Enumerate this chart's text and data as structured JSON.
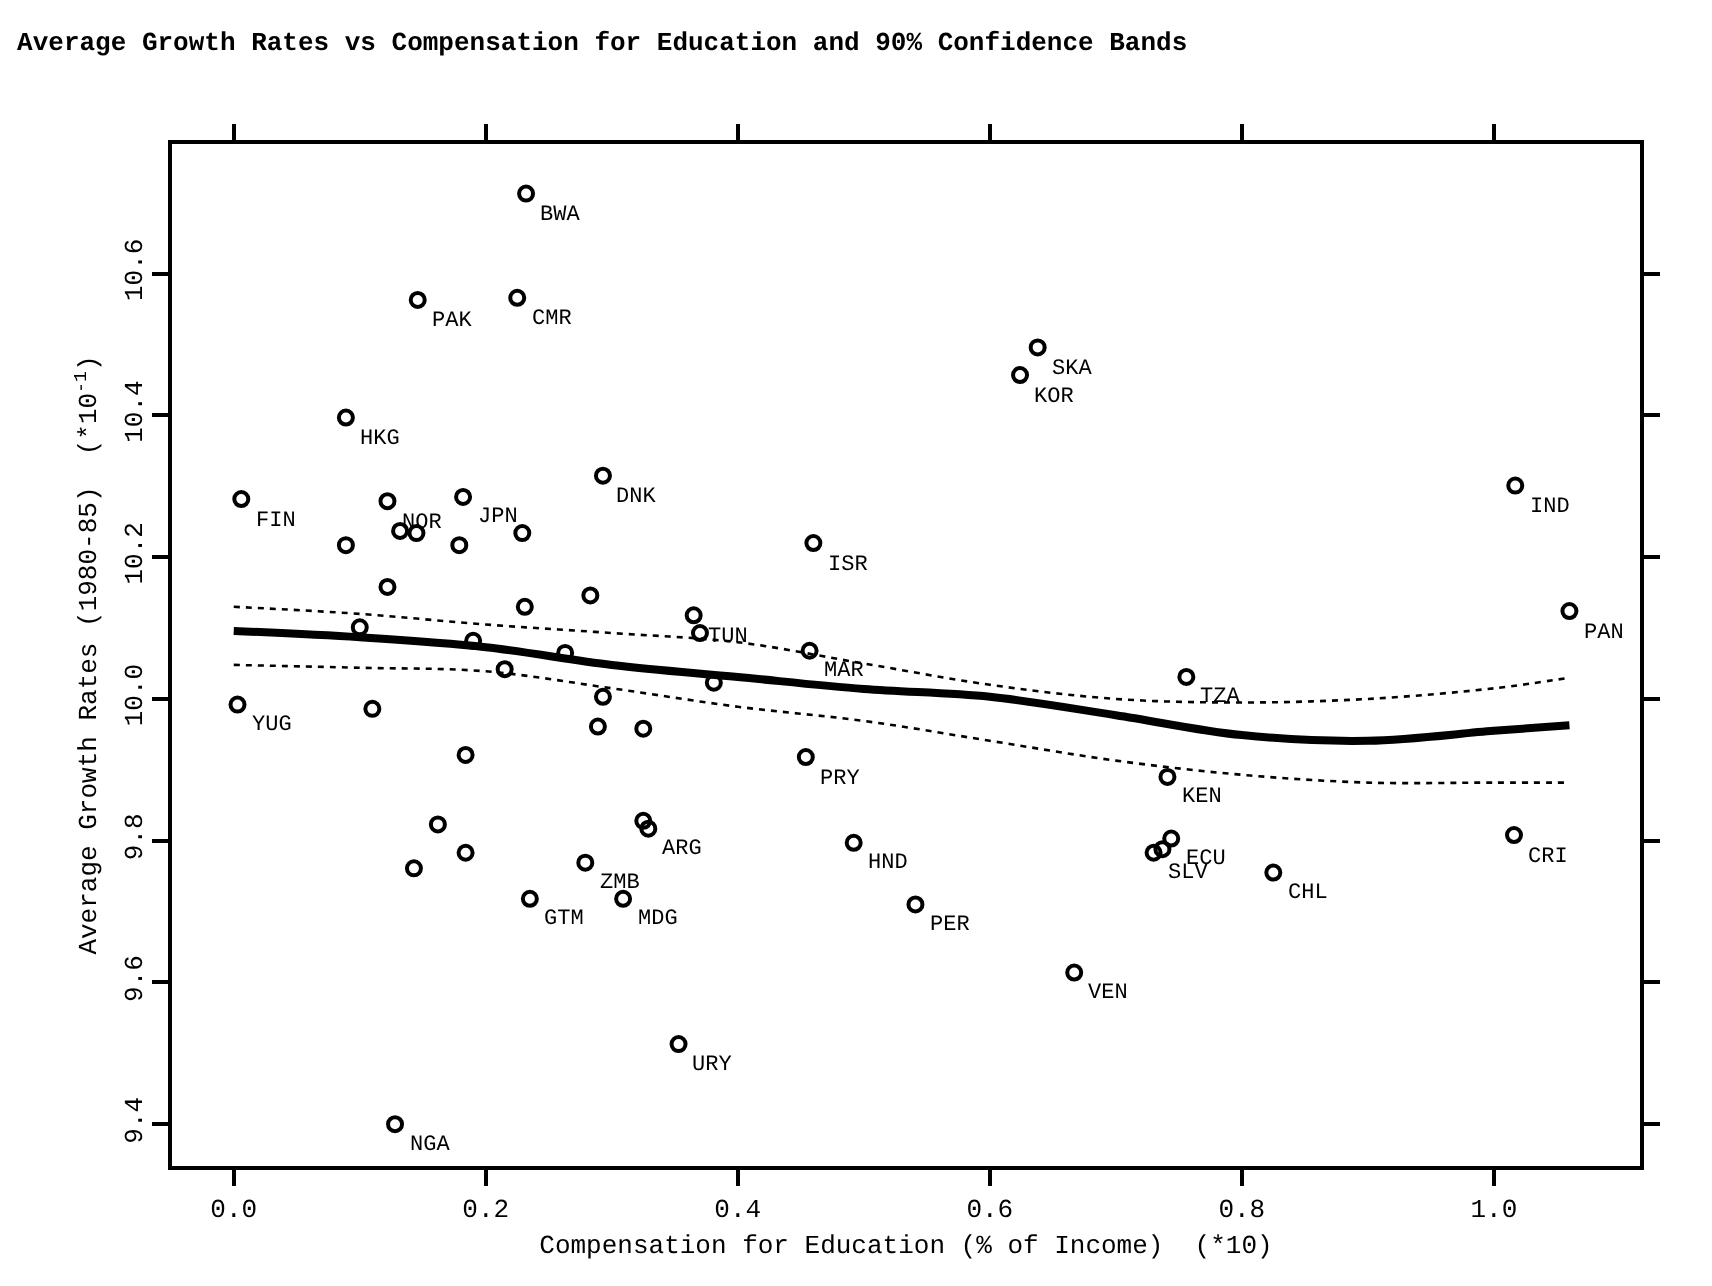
{
  "chart_data": {
    "type": "scatter",
    "title": "Average Growth Rates vs Compensation for Education and 90% Confidence Bands",
    "xlabel": "Compensation for Education (% of Income)  (*10)",
    "ylabel": "Average Growth Rates (1980-85)  (*10$^{-1}$)",
    "xlim": [
      -0.049,
      1.116
    ],
    "ylim": [
      9.341,
      10.783
    ],
    "xticks": [
      {
        "value": 0.0,
        "label": "0.0"
      },
      {
        "value": 0.2,
        "label": "0.2"
      },
      {
        "value": 0.4,
        "label": "0.4"
      },
      {
        "value": 0.6,
        "label": "0.6"
      },
      {
        "value": 0.8,
        "label": "0.8"
      },
      {
        "value": 1.0,
        "label": "1.0"
      }
    ],
    "yticks": [
      9.4,
      9.6,
      9.8,
      {
        "value": 10.0,
        "label": "10.0"
      },
      10.2,
      10.4,
      10.6
    ],
    "grid": false,
    "series": [
      {
        "color": "#000000",
        "marker": "circle",
        "x": [
          0.006,
          0.089,
          0.232,
          0.146,
          0.225,
          0.122,
          0.182,
          0.293,
          0.089,
          0.132,
          0.145,
          0.179,
          0.229,
          0.122,
          0.231,
          0.283,
          0.365,
          0.37,
          0.1,
          0.19,
          0.263,
          0.215,
          0.46,
          0.457,
          0.003,
          0.11,
          0.381,
          0.293,
          0.289,
          0.325,
          0.184,
          0.454,
          0.162,
          0.184,
          0.143,
          0.279,
          0.325,
          0.329,
          0.235,
          0.309,
          0.353,
          0.128,
          0.492,
          0.638,
          0.624,
          1.017,
          1.06,
          0.756,
          0.741,
          0.744,
          0.73,
          0.737,
          1.016,
          0.825,
          0.541,
          0.667
        ],
        "values": [
          10.282,
          10.397,
          10.713,
          10.563,
          10.566,
          10.279,
          10.285,
          10.315,
          10.217,
          10.237,
          10.234,
          10.217,
          10.234,
          10.158,
          10.13,
          10.146,
          10.118,
          10.093,
          10.101,
          10.082,
          10.065,
          10.042,
          10.22,
          10.068,
          9.992,
          9.986,
          10.023,
          10.003,
          9.961,
          9.958,
          9.921,
          9.918,
          9.823,
          9.783,
          9.761,
          9.769,
          9.828,
          9.817,
          9.718,
          9.718,
          9.513,
          9.4,
          9.797,
          10.496,
          10.457,
          10.301,
          10.124,
          10.031,
          9.89,
          9.803,
          9.783,
          9.788,
          9.808,
          9.755,
          9.71,
          9.614
        ]
      },
      {
        "type": "line",
        "color": "#000000",
        "line_style": "solid",
        "marker": "none",
        "x": [
          0.0,
          0.1,
          0.2,
          0.3,
          0.4,
          0.5,
          0.6,
          0.7,
          0.8,
          0.9,
          1.0,
          1.06
        ],
        "values": [
          10.096,
          10.087,
          10.073,
          10.048,
          10.031,
          10.014,
          10.003,
          9.977,
          9.949,
          9.941,
          9.955,
          9.963
        ]
      },
      {
        "type": "line",
        "color": "#000000",
        "line_style": "dotted",
        "marker": "none",
        "x": [
          0.0,
          0.1,
          0.2,
          0.3,
          0.4,
          0.5,
          0.6,
          0.7,
          0.8,
          0.9,
          1.0,
          1.06
        ],
        "values": [
          10.13,
          10.12,
          10.105,
          10.093,
          10.08,
          10.05,
          10.02,
          10.0,
          9.995,
          10.0,
          10.015,
          10.03
        ]
      },
      {
        "type": "line",
        "color": "#000000",
        "line_style": "dotted",
        "marker": "none",
        "x": [
          0.0,
          0.1,
          0.2,
          0.3,
          0.4,
          0.5,
          0.6,
          0.7,
          0.8,
          0.9,
          1.0,
          1.06
        ],
        "values": [
          10.048,
          10.044,
          10.039,
          10.015,
          9.989,
          9.969,
          9.941,
          9.913,
          9.893,
          9.882,
          9.882,
          9.882
        ]
      }
    ],
    "annotations": [
      {
        "text": "FIN",
        "x": 0.006,
        "y": 10.282
      },
      {
        "text": "HKG",
        "x": 0.089,
        "y": 10.397
      },
      {
        "text": "BWA",
        "x": 0.232,
        "y": 10.713
      },
      {
        "text": "PAK",
        "x": 0.146,
        "y": 10.563
      },
      {
        "text": "CMR",
        "x": 0.225,
        "y": 10.566
      },
      {
        "text": "NOR",
        "x": 0.122,
        "y": 10.279
      },
      {
        "text": "JPN",
        "x": 0.182,
        "y": 10.285
      },
      {
        "text": "DNK",
        "x": 0.293,
        "y": 10.315
      },
      {
        "text": "TUN",
        "x": 0.365,
        "y": 10.118
      },
      {
        "text": "ISR",
        "x": 0.46,
        "y": 10.22
      },
      {
        "text": "MAR",
        "x": 0.457,
        "y": 10.068
      },
      {
        "text": "YUG",
        "x": 0.003,
        "y": 9.992
      },
      {
        "text": "PRY",
        "x": 0.454,
        "y": 9.918
      },
      {
        "text": "ZMB",
        "x": 0.279,
        "y": 9.769
      },
      {
        "text": "ARG",
        "x": 0.329,
        "y": 9.817
      },
      {
        "text": "GTM",
        "x": 0.235,
        "y": 9.718
      },
      {
        "text": "MDG",
        "x": 0.309,
        "y": 9.718
      },
      {
        "text": "URY",
        "x": 0.353,
        "y": 9.513
      },
      {
        "text": "NGA",
        "x": 0.128,
        "y": 9.4
      },
      {
        "text": "HND",
        "x": 0.492,
        "y": 9.797
      },
      {
        "text": "SKA",
        "x": 0.638,
        "y": 10.496
      },
      {
        "text": "KOR",
        "x": 0.624,
        "y": 10.457
      },
      {
        "text": "IND",
        "x": 1.017,
        "y": 10.301
      },
      {
        "text": "PAN",
        "x": 1.06,
        "y": 10.124
      },
      {
        "text": "TZA",
        "x": 0.756,
        "y": 10.031
      },
      {
        "text": "KEN",
        "x": 0.741,
        "y": 9.89
      },
      {
        "text": "ECU",
        "x": 0.744,
        "y": 9.803
      },
      {
        "text": "SLV",
        "x": 0.73,
        "y": 9.783
      },
      {
        "text": "CRI",
        "x": 1.016,
        "y": 9.808
      },
      {
        "text": "CHL",
        "x": 0.825,
        "y": 9.755
      },
      {
        "text": "PER",
        "x": 0.541,
        "y": 9.71
      },
      {
        "text": "VEN",
        "x": 0.667,
        "y": 9.614
      }
    ]
  }
}
